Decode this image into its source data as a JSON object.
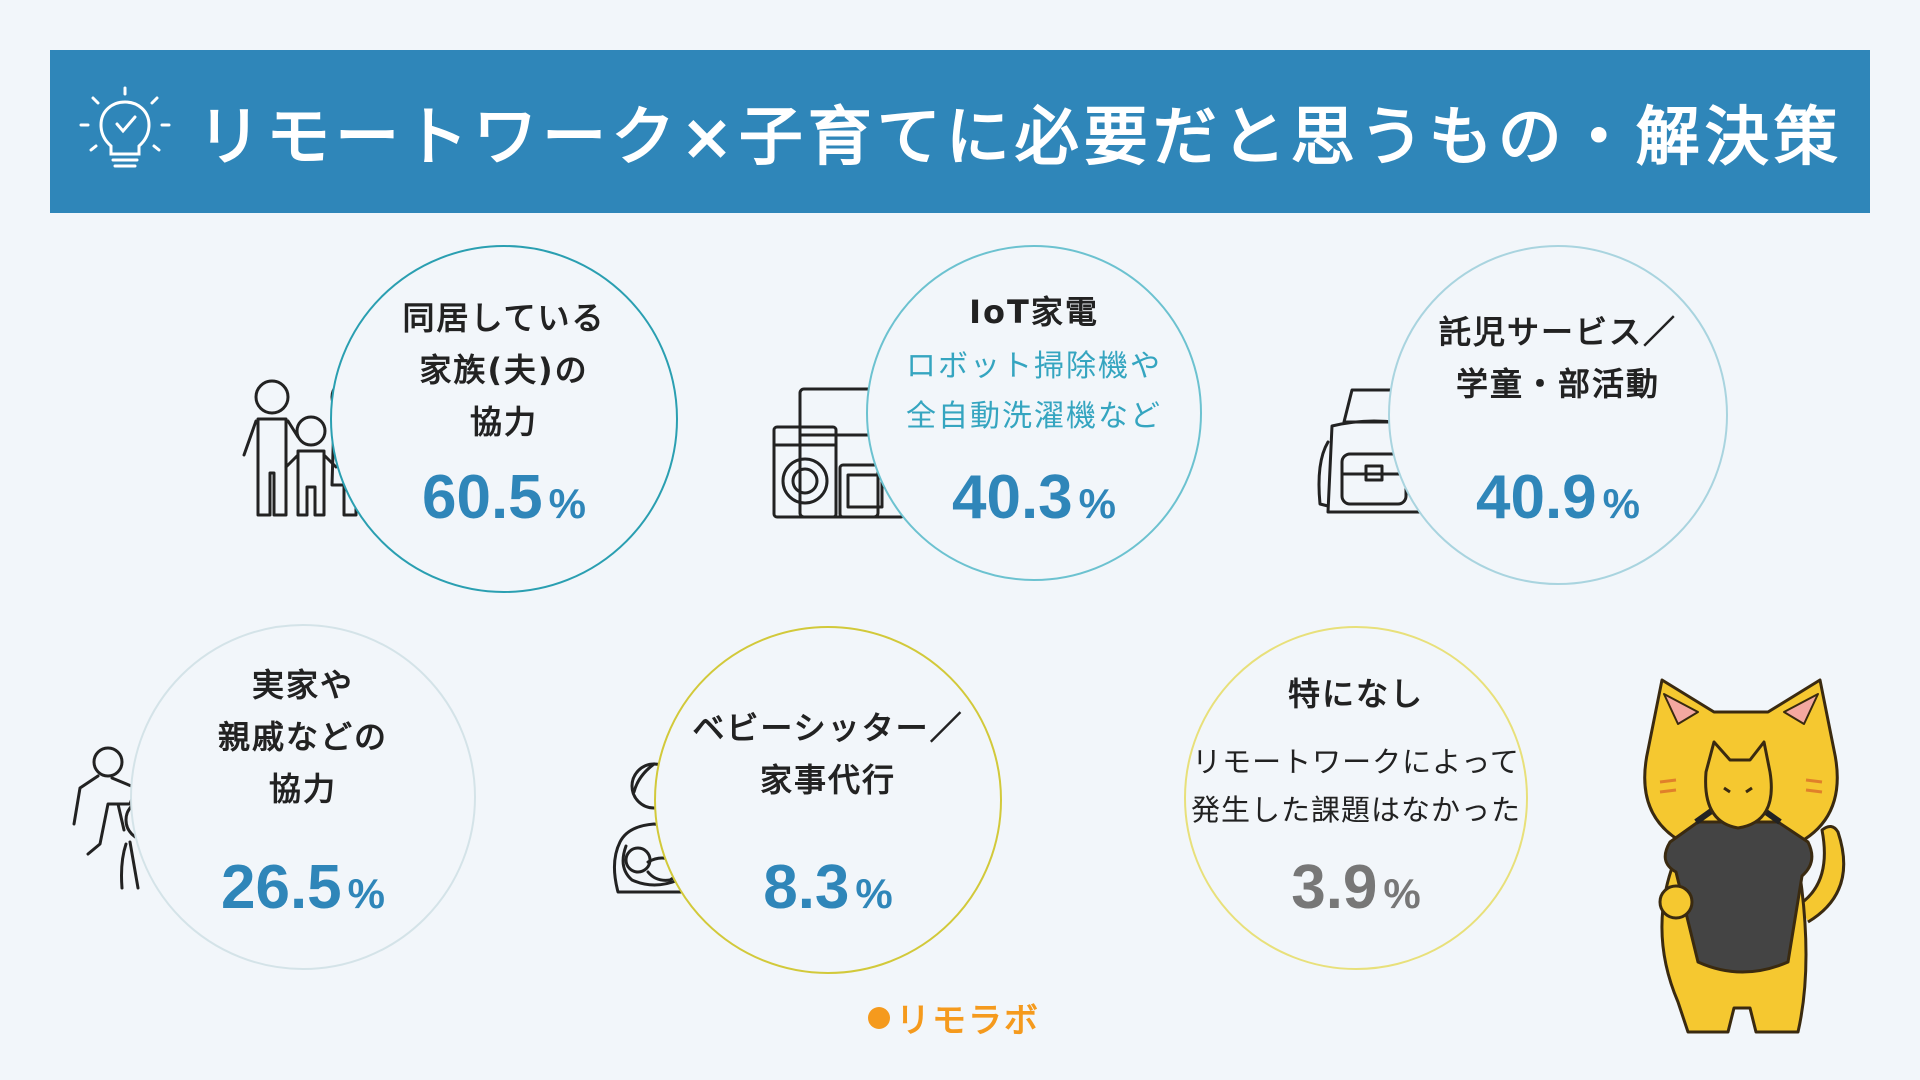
{
  "title": "リモートワーク×子育てに必要だと思うもの・解決策",
  "brand": "リモラボ",
  "colors": {
    "banner": "#2f86b9",
    "value_blue": "#2f86b9",
    "value_gray": "#777777",
    "accent_teal": "#35a5c0",
    "logo_orange": "#f59a1d",
    "mascot_yellow": "#f5c830"
  },
  "chart_data": {
    "type": "bubble-infographic",
    "unit": "%",
    "items": [
      {
        "lines": [
          "同居している",
          "家族(夫)の",
          "協力"
        ],
        "value": 60.5,
        "icon": "family-icon",
        "ring": "#2a9fb1"
      },
      {
        "lines": [
          "IoT家電"
        ],
        "sub": [
          "ロボット掃除機や",
          "全自動洗濯機など"
        ],
        "value": 40.3,
        "icon": "appliances-icon",
        "ring": "#6cc2d0"
      },
      {
        "lines": [
          "託児サービス／",
          "学童・部活動"
        ],
        "value": 40.9,
        "icon": "backpack-icon",
        "ring": "#a9d4df"
      },
      {
        "lines": [
          "実家や",
          "親戚などの",
          "協力"
        ],
        "value": 26.5,
        "icon": "parent-child-icon",
        "ring": "#d4e3e8"
      },
      {
        "lines": [
          "ベビーシッター／",
          "家事代行"
        ],
        "value": 8.3,
        "icon": "babysitter-icon",
        "ring": "#d2c93a"
      },
      {
        "lines": [
          "特になし"
        ],
        "note": [
          "リモートワークによって",
          "発生した課題はなかった"
        ],
        "value": 3.9,
        "icon": "none",
        "ring": "#e8e07a"
      }
    ]
  }
}
